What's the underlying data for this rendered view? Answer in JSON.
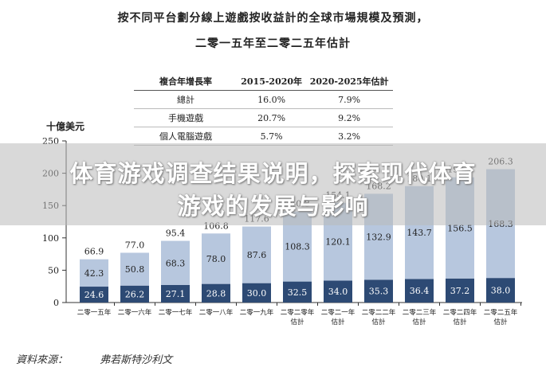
{
  "title_line1": "按不同平台劃分線上遊戲按收益計的全球市場規模及預測，",
  "title_line2": "二零一五年至二零二五年估計",
  "cagr_table": {
    "headers": [
      "複合年增長率",
      "2015-2020年",
      "2020-2025年估計"
    ],
    "rows": [
      [
        "總計",
        "16.0%",
        "7.9%"
      ],
      [
        "手機遊戲",
        "20.7%",
        "9.2%"
      ],
      [
        "個人電腦遊戲",
        "5.7%",
        "3.2%"
      ]
    ]
  },
  "unit_label": "十億美元",
  "source_label": "資料來源：",
  "source_value": "弗若斯特沙利文",
  "banner": {
    "line1": "体育游戏调查结果说明，探索现代体育",
    "line2": "游戏的发展与影响"
  },
  "colors": {
    "pc": "#2d4a74",
    "mobile": "#b7c7de"
  },
  "chart_data": {
    "type": "bar",
    "stacked": true,
    "ylim": [
      0,
      250
    ],
    "yticks": [
      0,
      50,
      100,
      150,
      200,
      250
    ],
    "categories": [
      [
        "二零一五年"
      ],
      [
        "二零一六年"
      ],
      [
        "二零一七年"
      ],
      [
        "二零一八年"
      ],
      [
        "二零一九年"
      ],
      [
        "二零二零年",
        "估計"
      ],
      [
        "二零二一年",
        "估計"
      ],
      [
        "二零二二年",
        "估計"
      ],
      [
        "二零二三年",
        "估計"
      ],
      [
        "二零二四年",
        "估計"
      ],
      [
        "二零二五年",
        "估計"
      ]
    ],
    "series": [
      {
        "values": [
          24.6,
          26.2,
          27.1,
          28.8,
          30.0,
          32.5,
          34.0,
          35.3,
          36.4,
          37.2,
          38.0
        ]
      },
      {
        "values": [
          42.3,
          50.8,
          68.3,
          78.0,
          87.6,
          108.3,
          120.1,
          132.9,
          143.7,
          156.5,
          168.3
        ]
      }
    ],
    "totals": [
      66.9,
      77.0,
      95.4,
      106.8,
      117.6,
      140.8,
      154.1,
      168.2,
      180.1,
      193.7,
      206.3
    ]
  }
}
